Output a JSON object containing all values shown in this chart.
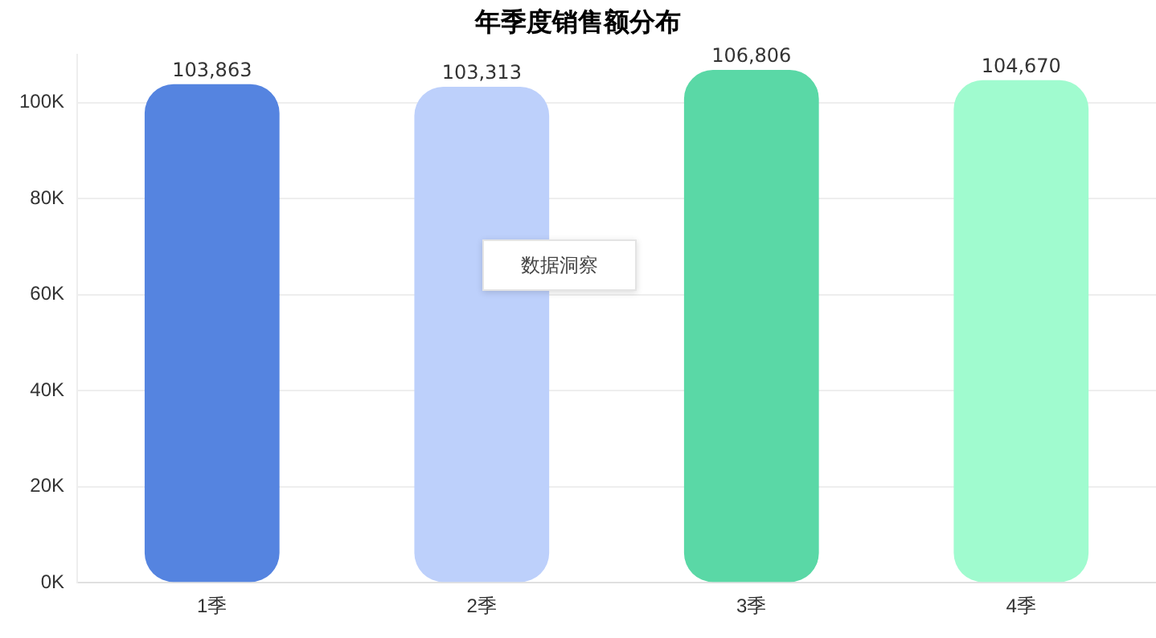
{
  "chart_data": {
    "type": "bar",
    "title": "年季度销售额分布",
    "categories": [
      "1季",
      "2季",
      "3季",
      "4季"
    ],
    "values": [
      103863,
      103313,
      106806,
      104670
    ],
    "colors": [
      "#5584e0",
      "#bdd0fb",
      "#5ad8a6",
      "#a0fbcf"
    ],
    "value_labels": [
      "103,863",
      "103,313",
      "106,806",
      "104,670"
    ],
    "ylim": [
      0,
      110000
    ],
    "yticks": [
      {
        "value": 0,
        "label": "0K"
      },
      {
        "value": 20000,
        "label": "20K"
      },
      {
        "value": 40000,
        "label": "40K"
      },
      {
        "value": 60000,
        "label": "60K"
      },
      {
        "value": 80000,
        "label": "80K"
      },
      {
        "value": 100000,
        "label": "100K"
      }
    ],
    "grid": "y",
    "legend": false,
    "annotations": [
      "数据洞察"
    ]
  }
}
